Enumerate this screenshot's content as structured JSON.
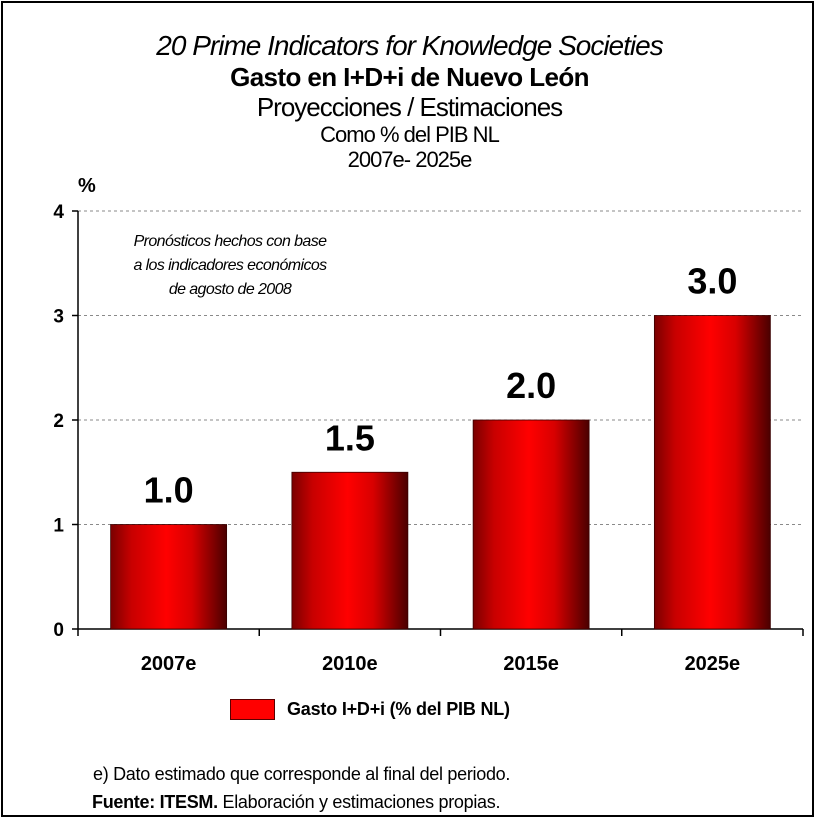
{
  "titles": {
    "line1": "20 Prime Indicators for Knowledge Societies",
    "line2": "Gasto en I+D+i de Nuevo León",
    "line3": "Proyecciones / Estimaciones",
    "line4": "Como % del PIB NL",
    "line5": "2007e- 2025e"
  },
  "note": {
    "line1": "Pronósticos hechos con base",
    "line2": "a los indicadores económicos",
    "line3": "de agosto de 2008"
  },
  "footer": {
    "line1": "e) Dato estimado que corresponde al final del periodo.",
    "source_label": "Fuente: ITESM.",
    "source_text": " Elaboración y estimaciones propias."
  },
  "chart_data": {
    "type": "bar",
    "title": "Gasto en I+D+i de Nuevo León",
    "ylabel": "%",
    "categories": [
      "2007e",
      "2010e",
      "2015e",
      "2025e"
    ],
    "series": [
      {
        "name": "Gasto I+D+i (% del PIB NL)",
        "values": [
          1.0,
          1.5,
          2.0,
          3.0
        ],
        "labels": [
          "1.0",
          "1.5",
          "2.0",
          "3.0"
        ],
        "color": "#ff0000"
      }
    ],
    "ylim": [
      0,
      4
    ],
    "yticks": [
      "0",
      "1",
      "2",
      "3",
      "4"
    ],
    "grid": true,
    "legend": "bottom"
  }
}
